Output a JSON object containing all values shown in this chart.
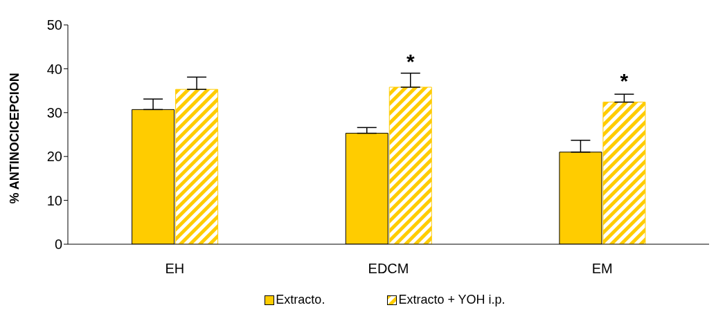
{
  "chart_data": {
    "type": "bar",
    "ylabel": "% ANTINOCICEPCION",
    "categories": [
      "EH",
      "EDCM",
      "EM"
    ],
    "series": [
      {
        "name": "Extracto.",
        "color": "#ffcc00",
        "values": [
          30.7,
          25.3,
          21.0
        ],
        "errors": [
          2.4,
          1.3,
          2.7
        ]
      },
      {
        "name": "Extracto + YOH i.p.",
        "color": "#ffcc00",
        "values": [
          35.3,
          35.8,
          32.4
        ],
        "errors": [
          2.8,
          3.2,
          1.8
        ]
      }
    ],
    "annotations": [
      {
        "text": "*",
        "x": "EDCM",
        "y": 35.8
      },
      {
        "text": "*",
        "x": "EM",
        "y": 32.4
      }
    ],
    "ylim": [
      0,
      50
    ],
    "yticks": [
      0,
      10,
      20,
      30,
      40,
      50
    ],
    "grid": false,
    "legend": "bottom"
  }
}
